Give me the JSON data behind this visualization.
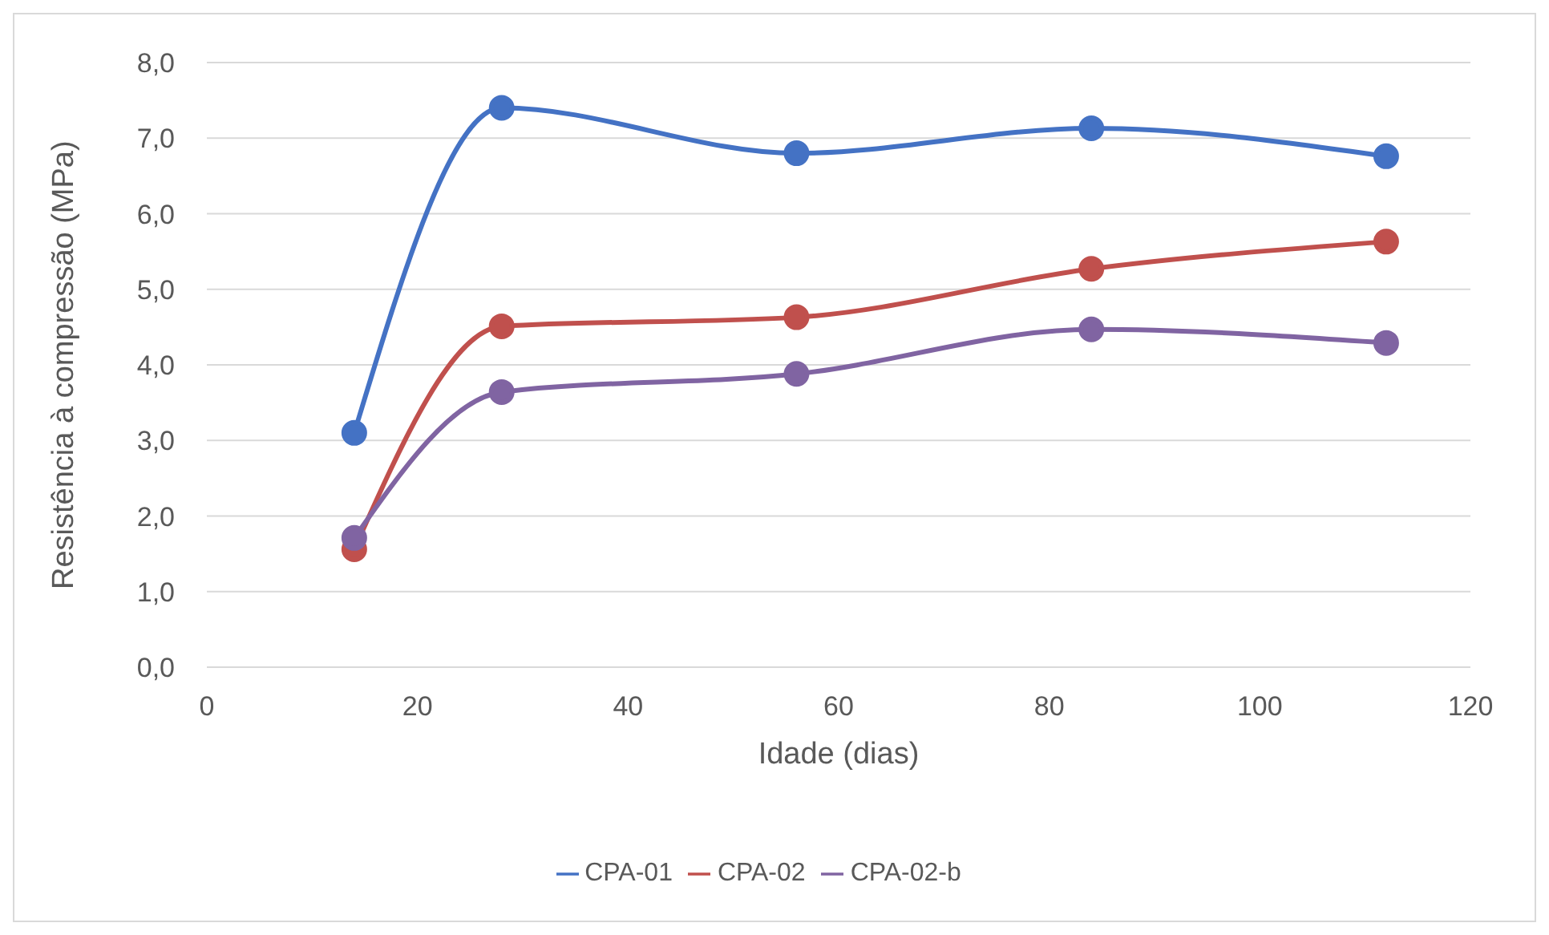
{
  "chart_data": {
    "type": "line",
    "xlabel": "Idade (dias)",
    "ylabel": "Resistência à compressão (MPa)",
    "x": [
      14,
      28,
      56,
      84,
      112
    ],
    "series": [
      {
        "name": "CPA-01",
        "color": "#4472c4",
        "values": [
          3.1,
          7.4,
          6.8,
          7.13,
          6.76
        ]
      },
      {
        "name": "CPA-02",
        "color": "#c0504d",
        "values": [
          1.56,
          4.51,
          4.63,
          5.27,
          5.63
        ]
      },
      {
        "name": "CPA-02-b",
        "color": "#8064a2",
        "values": [
          1.71,
          3.64,
          3.88,
          4.47,
          4.29
        ]
      }
    ],
    "xlim": [
      0,
      120
    ],
    "xticks": [
      0,
      20,
      40,
      60,
      80,
      100,
      120
    ],
    "ylim": [
      0,
      8
    ],
    "yticks": [
      {
        "value": 0,
        "label": "0,0"
      },
      {
        "value": 1,
        "label": "1,0"
      },
      {
        "value": 2,
        "label": "2,0"
      },
      {
        "value": 3,
        "label": "3,0"
      },
      {
        "value": 4,
        "label": "4,0"
      },
      {
        "value": 5,
        "label": "5,0"
      },
      {
        "value": 6,
        "label": "6,0"
      },
      {
        "value": 7,
        "label": "7,0"
      },
      {
        "value": 8,
        "label": "8,0"
      }
    ],
    "grid": "y",
    "legend": "bottom",
    "marker": "circle",
    "line_style": "solid"
  }
}
